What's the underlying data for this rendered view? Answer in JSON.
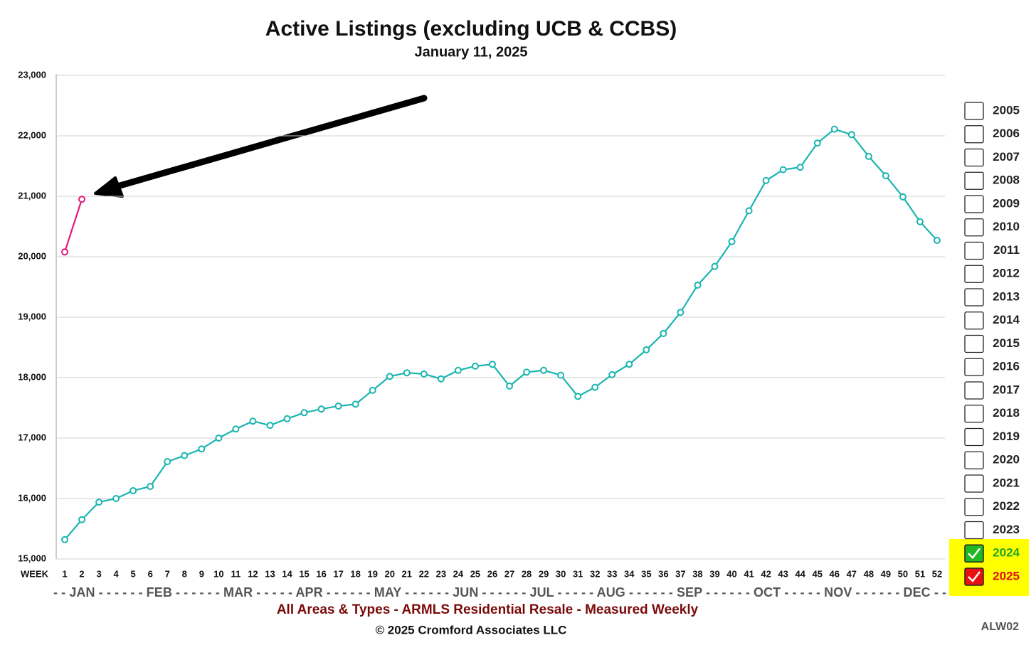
{
  "chart_data": {
    "type": "line",
    "title": "Active Listings (excluding UCB & CCBS)",
    "subtitle": "January 11, 2025",
    "x_axis_label": "WEEK",
    "month_strip": "- - JAN - - - - - - FEB - - - - - - MAR - - - - - APR - - - - - - MAY - - - - - - JUN - - - - - - JUL - - - - - AUG - - - - - - SEP - - - - - - OCT - - - - - NOV - - - - - - DEC - -",
    "caption": "All Areas & Types - ARMLS Residential Resale - Measured Weekly",
    "copyright": "© 2025 Cromford Associates LLC",
    "chart_code": "ALW02",
    "categories": [
      1,
      2,
      3,
      4,
      5,
      6,
      7,
      8,
      9,
      10,
      11,
      12,
      13,
      14,
      15,
      16,
      17,
      18,
      19,
      20,
      21,
      22,
      23,
      24,
      25,
      26,
      27,
      28,
      29,
      30,
      31,
      32,
      33,
      34,
      35,
      36,
      37,
      38,
      39,
      40,
      41,
      42,
      43,
      44,
      45,
      46,
      47,
      48,
      49,
      50,
      51,
      52
    ],
    "ylim": [
      15000,
      23000
    ],
    "yticks": [
      {
        "value": 15000,
        "label": "15,000"
      },
      {
        "value": 16000,
        "label": "16,000"
      },
      {
        "value": 17000,
        "label": "17,000"
      },
      {
        "value": 18000,
        "label": "18,000"
      },
      {
        "value": 19000,
        "label": "19,000"
      },
      {
        "value": 20000,
        "label": "20,000"
      },
      {
        "value": 21000,
        "label": "21,000"
      },
      {
        "value": 22000,
        "label": "22,000"
      },
      {
        "value": 23000,
        "label": "23,000"
      }
    ],
    "grid": true,
    "legend_position": "right",
    "unchecked_years": [
      "2005",
      "2006",
      "2007",
      "2008",
      "2009",
      "2010",
      "2011",
      "2012",
      "2013",
      "2014",
      "2015",
      "2016",
      "2017",
      "2018",
      "2019",
      "2020",
      "2021",
      "2022",
      "2023"
    ],
    "series": [
      {
        "name": "2024",
        "color": "#1ab5b0",
        "label_color": "#22a822",
        "checkbox_color": "#22b822",
        "values": [
          15320,
          15650,
          15940,
          16000,
          16130,
          16200,
          16610,
          16710,
          16820,
          17000,
          17150,
          17280,
          17210,
          17320,
          17420,
          17480,
          17530,
          17560,
          17790,
          18020,
          18080,
          18060,
          17980,
          18120,
          18190,
          18220,
          17860,
          18090,
          18120,
          18040,
          17690,
          17840,
          18050,
          18220,
          18460,
          18730,
          19080,
          19530,
          19840,
          20250,
          20760,
          21260,
          21440,
          21480,
          21880,
          22110,
          22020,
          21660,
          21340,
          20990,
          20580,
          20270
        ]
      },
      {
        "name": "2025",
        "color": "#e6177a",
        "label_color": "#e01010",
        "checkbox_color": "#e81010",
        "values": [
          20080,
          20950,
          null,
          null,
          null,
          null,
          null,
          null,
          null,
          null,
          null,
          null,
          null,
          null,
          null,
          null,
          null,
          null,
          null,
          null,
          null,
          null,
          null,
          null,
          null,
          null,
          null,
          null,
          null,
          null,
          null,
          null,
          null,
          null,
          null,
          null,
          null,
          null,
          null,
          null,
          null,
          null,
          null,
          null,
          null,
          null,
          null,
          null,
          null,
          null,
          null,
          null
        ]
      }
    ]
  }
}
